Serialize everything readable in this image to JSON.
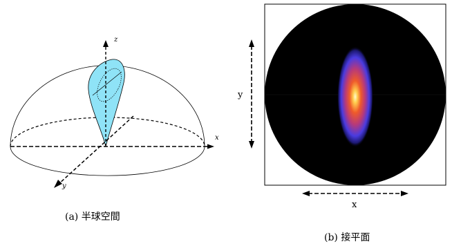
{
  "left_panel": {
    "axis_labels": {
      "z": "z",
      "x": "x",
      "y": "y"
    },
    "caption": "(a) 半球空間"
  },
  "right_panel": {
    "axis_labels": {
      "x": "x",
      "y": "y"
    },
    "caption": "(b) 接平面"
  },
  "colors": {
    "lobe_fill": "#8fe3f7",
    "disk": "#000000",
    "glow_core": "#fff3a0",
    "glow_mid": "#e8402a",
    "glow_outer": "#4a3be0"
  }
}
